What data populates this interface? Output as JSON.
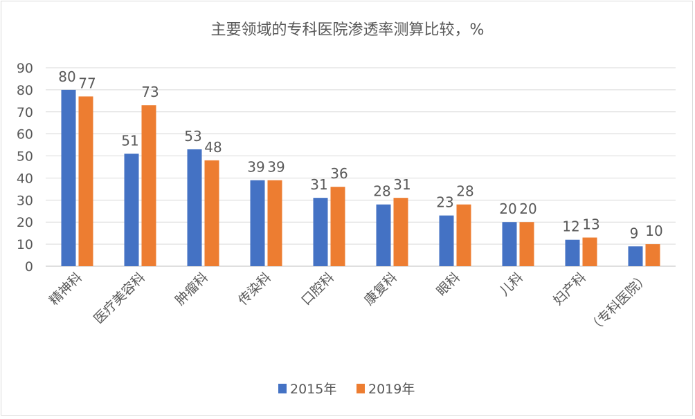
{
  "chart_data": {
    "type": "bar",
    "title": "主要领域的专科医院渗透率测算比较，%",
    "xlabel": "",
    "ylabel": "",
    "ylim": [
      0,
      90
    ],
    "yticks": [
      0,
      10,
      20,
      30,
      40,
      50,
      60,
      70,
      80,
      90
    ],
    "grid": true,
    "legend_position": "bottom",
    "categories": [
      "精神科",
      "医疗美容科",
      "肿瘤科",
      "传染科",
      "口腔科",
      "康复科",
      "眼科",
      "儿科",
      "妇产科",
      "（专科医院）"
    ],
    "series": [
      {
        "name": "2015年",
        "color": "#4472c4",
        "values": [
          80,
          51,
          53,
          39,
          31,
          28,
          23,
          20,
          12,
          9
        ]
      },
      {
        "name": "2019年",
        "color": "#ed7d31",
        "values": [
          77,
          73,
          48,
          39,
          36,
          31,
          28,
          20,
          13,
          10
        ]
      }
    ]
  }
}
